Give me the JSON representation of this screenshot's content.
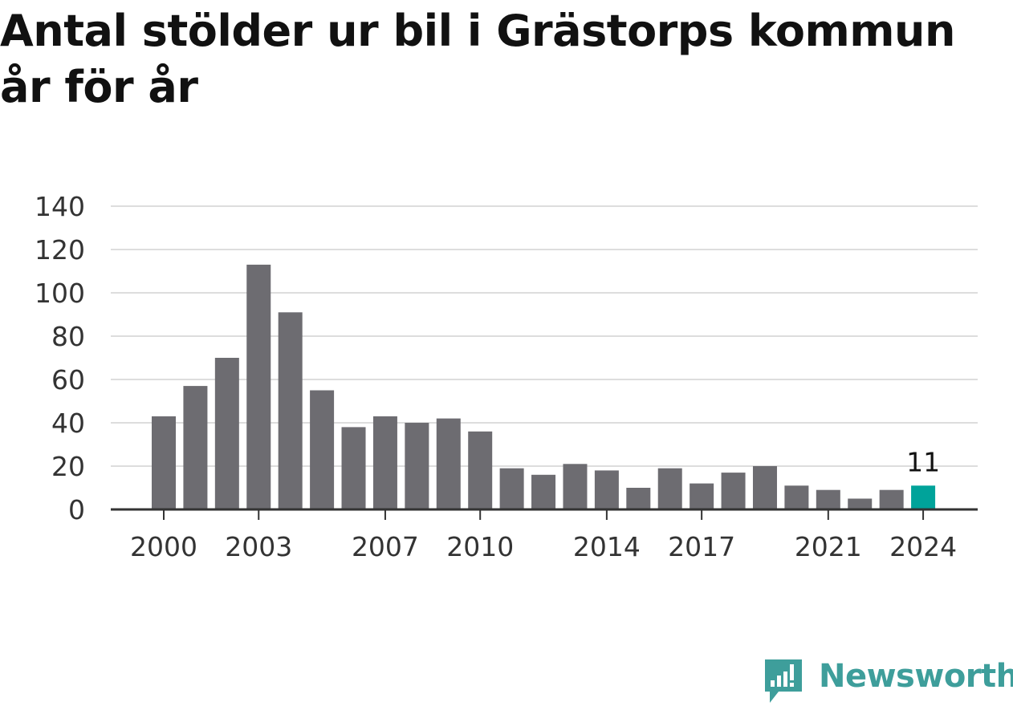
{
  "title_lines": [
    "Antal stölder ur bil i Grästorps kommun",
    "år för år"
  ],
  "brand": {
    "name": "Newsworthy",
    "color": "#3e9e9b"
  },
  "colors": {
    "bar": "#6d6c71",
    "highlight": "#00a39a",
    "grid": "#dddddd",
    "axis": "#333333"
  },
  "chart_data": {
    "type": "bar",
    "title": "Antal stölder ur bil i Grästorps kommun år för år",
    "xlabel": "",
    "ylabel": "",
    "ylim": [
      0,
      140
    ],
    "yticks": [
      "0",
      "20",
      "40",
      "60",
      "80",
      "100",
      "120",
      "140"
    ],
    "ytick_values": [
      0,
      20,
      40,
      60,
      80,
      100,
      120,
      140
    ],
    "categories": [
      2000,
      2001,
      2002,
      2003,
      2004,
      2005,
      2006,
      2007,
      2008,
      2009,
      2010,
      2011,
      2012,
      2013,
      2014,
      2015,
      2016,
      2017,
      2018,
      2019,
      2020,
      2021,
      2022,
      2023,
      2024
    ],
    "values": [
      43,
      57,
      70,
      113,
      91,
      55,
      38,
      43,
      40,
      42,
      36,
      19,
      16,
      21,
      18,
      10,
      19,
      12,
      17,
      20,
      11,
      9,
      5,
      9,
      11
    ],
    "xtick_labels": [
      "2000",
      "2003",
      "2007",
      "2010",
      "2014",
      "2017",
      "2021",
      "2024"
    ],
    "highlight": {
      "category": 2024,
      "label": "11"
    },
    "grid": true,
    "legend": "none"
  }
}
